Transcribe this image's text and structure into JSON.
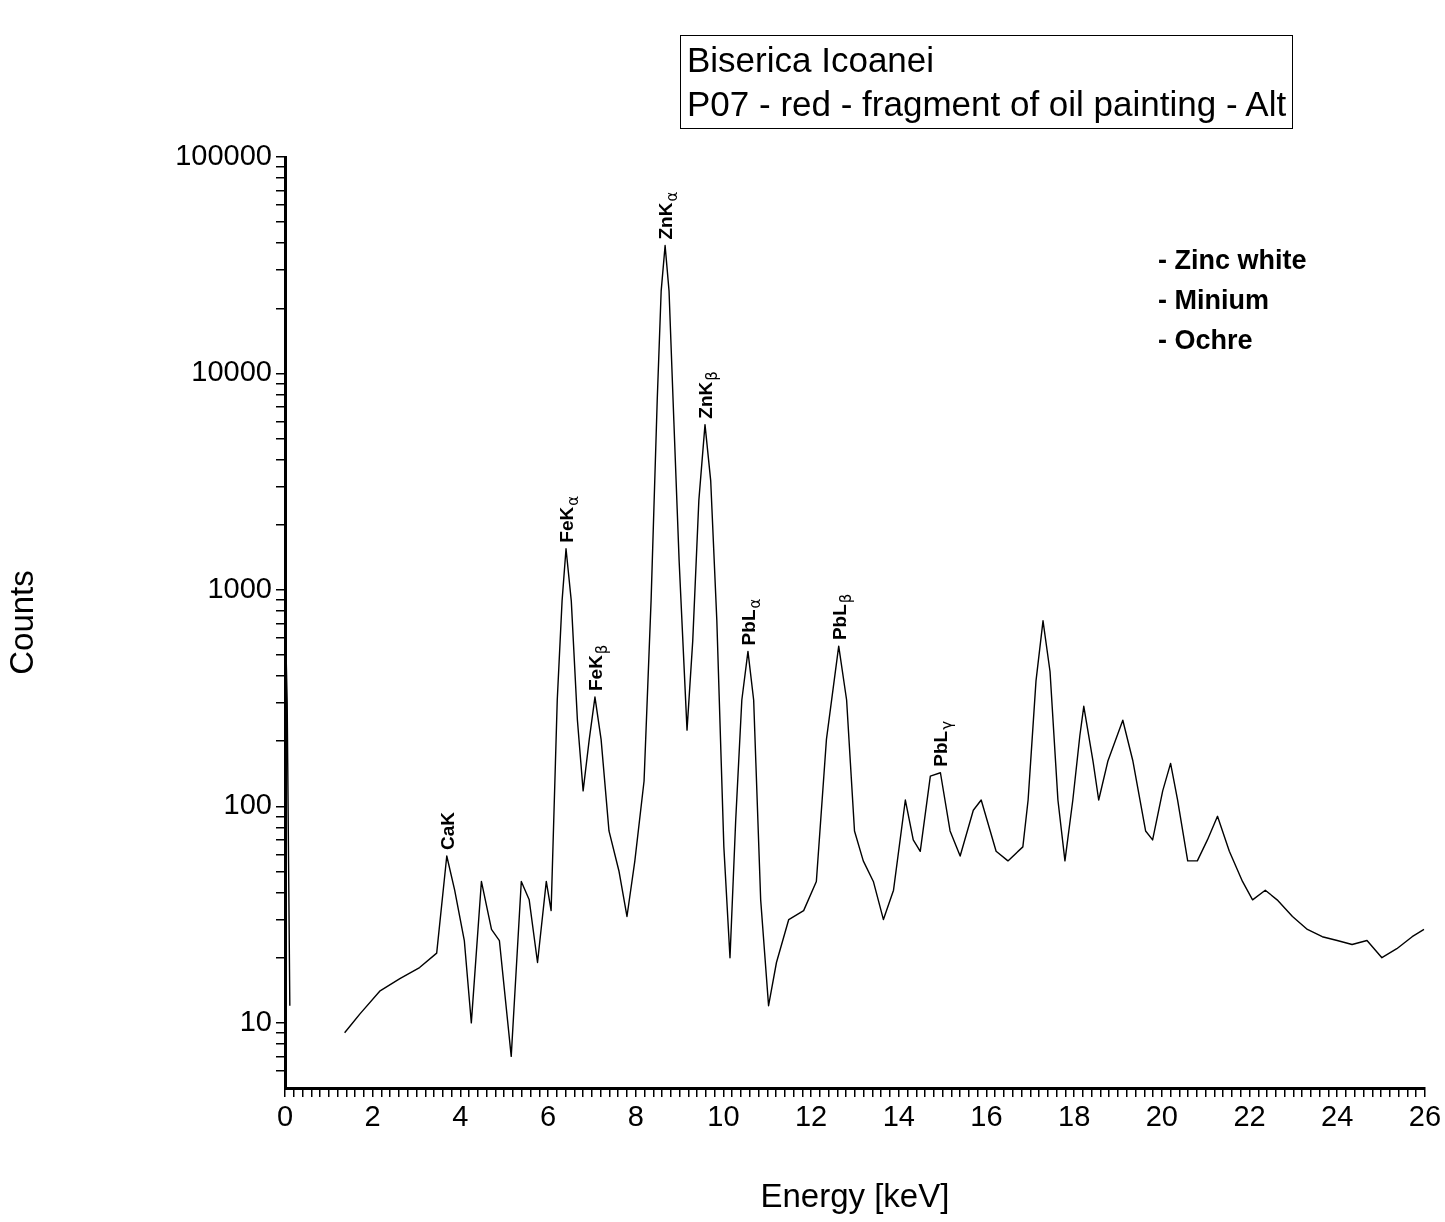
{
  "chart_data": {
    "type": "line",
    "title": "Biserica Icoanei",
    "subtitle": "P07 - red - fragment of oil painting - Alt",
    "xlabel": "Energy [keV]",
    "ylabel": "Counts",
    "log": "y",
    "marker": "none",
    "line_style": "solid",
    "legend": false,
    "xlim": [
      0,
      26
    ],
    "ylim": [
      5,
      100000
    ],
    "xticks": [
      0,
      {
        "value": 0.2,
        "label": null
      },
      {
        "value": 0.4,
        "label": null
      },
      {
        "value": 0.6,
        "label": null
      },
      {
        "value": 0.8,
        "label": null
      },
      {
        "value": 1,
        "label": null
      },
      {
        "value": 1.2,
        "label": null
      },
      {
        "value": 1.4,
        "label": null
      },
      {
        "value": 1.6,
        "label": null
      },
      {
        "value": 1.8,
        "label": null
      },
      2,
      {
        "value": 2.2,
        "label": null
      },
      {
        "value": 2.4,
        "label": null
      },
      {
        "value": 2.6,
        "label": null
      },
      {
        "value": 2.8,
        "label": null
      },
      {
        "value": 3,
        "label": null
      },
      {
        "value": 3.2,
        "label": null
      },
      {
        "value": 3.4,
        "label": null
      },
      {
        "value": 3.6,
        "label": null
      },
      {
        "value": 3.8,
        "label": null
      },
      4,
      {
        "value": 4.2,
        "label": null
      },
      {
        "value": 4.4,
        "label": null
      },
      {
        "value": 4.6,
        "label": null
      },
      {
        "value": 4.8,
        "label": null
      },
      {
        "value": 5,
        "label": null
      },
      {
        "value": 5.2,
        "label": null
      },
      {
        "value": 5.4,
        "label": null
      },
      {
        "value": 5.6,
        "label": null
      },
      {
        "value": 5.8,
        "label": null
      },
      6,
      {
        "value": 6.2,
        "label": null
      },
      {
        "value": 6.4,
        "label": null
      },
      {
        "value": 6.6,
        "label": null
      },
      {
        "value": 6.8,
        "label": null
      },
      {
        "value": 7,
        "label": null
      },
      {
        "value": 7.2,
        "label": null
      },
      {
        "value": 7.4,
        "label": null
      },
      {
        "value": 7.6,
        "label": null
      },
      {
        "value": 7.8,
        "label": null
      },
      8,
      {
        "value": 8.2,
        "label": null
      },
      {
        "value": 8.4,
        "label": null
      },
      {
        "value": 8.6,
        "label": null
      },
      {
        "value": 8.8,
        "label": null
      },
      {
        "value": 9,
        "label": null
      },
      {
        "value": 9.2,
        "label": null
      },
      {
        "value": 9.4,
        "label": null
      },
      {
        "value": 9.6,
        "label": null
      },
      {
        "value": 9.8,
        "label": null
      },
      10,
      {
        "value": 10.2,
        "label": null
      },
      {
        "value": 10.4,
        "label": null
      },
      {
        "value": 10.6,
        "label": null
      },
      {
        "value": 10.8,
        "label": null
      },
      {
        "value": 11,
        "label": null
      },
      {
        "value": 11.2,
        "label": null
      },
      {
        "value": 11.4,
        "label": null
      },
      {
        "value": 11.6,
        "label": null
      },
      {
        "value": 11.8,
        "label": null
      },
      12,
      {
        "value": 12.2,
        "label": null
      },
      {
        "value": 12.4,
        "label": null
      },
      {
        "value": 12.6,
        "label": null
      },
      {
        "value": 12.8,
        "label": null
      },
      {
        "value": 13,
        "label": null
      },
      {
        "value": 13.2,
        "label": null
      },
      {
        "value": 13.4,
        "label": null
      },
      {
        "value": 13.6,
        "label": null
      },
      {
        "value": 13.8,
        "label": null
      },
      14,
      {
        "value": 14.2,
        "label": null
      },
      {
        "value": 14.4,
        "label": null
      },
      {
        "value": 14.6,
        "label": null
      },
      {
        "value": 14.8,
        "label": null
      },
      {
        "value": 15,
        "label": null
      },
      {
        "value": 15.2,
        "label": null
      },
      {
        "value": 15.4,
        "label": null
      },
      {
        "value": 15.6,
        "label": null
      },
      {
        "value": 15.8,
        "label": null
      },
      16,
      {
        "value": 16.2,
        "label": null
      },
      {
        "value": 16.4,
        "label": null
      },
      {
        "value": 16.6,
        "label": null
      },
      {
        "value": 16.8,
        "label": null
      },
      {
        "value": 17,
        "label": null
      },
      {
        "value": 17.2,
        "label": null
      },
      {
        "value": 17.4,
        "label": null
      },
      {
        "value": 17.6,
        "label": null
      },
      {
        "value": 17.8,
        "label": null
      },
      18,
      {
        "value": 18.2,
        "label": null
      },
      {
        "value": 18.4,
        "label": null
      },
      {
        "value": 18.6,
        "label": null
      },
      {
        "value": 18.8,
        "label": null
      },
      {
        "value": 19,
        "label": null
      },
      {
        "value": 19.2,
        "label": null
      },
      {
        "value": 19.4,
        "label": null
      },
      {
        "value": 19.6,
        "label": null
      },
      {
        "value": 19.8,
        "label": null
      },
      20,
      {
        "value": 20.2,
        "label": null
      },
      {
        "value": 20.4,
        "label": null
      },
      {
        "value": 20.6,
        "label": null
      },
      {
        "value": 20.8,
        "label": null
      },
      {
        "value": 21,
        "label": null
      },
      {
        "value": 21.2,
        "label": null
      },
      {
        "value": 21.4,
        "label": null
      },
      {
        "value": 21.6,
        "label": null
      },
      {
        "value": 21.8,
        "label": null
      },
      22,
      {
        "value": 22.2,
        "label": null
      },
      {
        "value": 22.4,
        "label": null
      },
      {
        "value": 22.6,
        "label": null
      },
      {
        "value": 22.8,
        "label": null
      },
      {
        "value": 23,
        "label": null
      },
      {
        "value": 23.2,
        "label": null
      },
      {
        "value": 23.4,
        "label": null
      },
      {
        "value": 23.6,
        "label": null
      },
      {
        "value": 23.8,
        "label": null
      },
      24,
      {
        "value": 24.2,
        "label": null
      },
      {
        "value": 24.4,
        "label": null
      },
      {
        "value": 24.6,
        "label": null
      },
      {
        "value": 24.8,
        "label": null
      },
      {
        "value": 25,
        "label": null
      },
      {
        "value": 25.2,
        "label": null
      },
      {
        "value": 25.4,
        "label": null
      },
      {
        "value": 25.6,
        "label": null
      },
      {
        "value": 25.8,
        "label": null
      },
      26
    ],
    "yticks": [
      {
        "value": 6,
        "label": null
      },
      {
        "value": 7,
        "label": null
      },
      {
        "value": 8,
        "label": null
      },
      {
        "value": 9,
        "label": null
      },
      10,
      {
        "value": 20,
        "label": null
      },
      {
        "value": 30,
        "label": null
      },
      {
        "value": 40,
        "label": null
      },
      {
        "value": 50,
        "label": null
      },
      {
        "value": 60,
        "label": null
      },
      {
        "value": 70,
        "label": null
      },
      {
        "value": 80,
        "label": null
      },
      {
        "value": 90,
        "label": null
      },
      100,
      {
        "value": 200,
        "label": null
      },
      {
        "value": 300,
        "label": null
      },
      {
        "value": 400,
        "label": null
      },
      {
        "value": 500,
        "label": null
      },
      {
        "value": 600,
        "label": null
      },
      {
        "value": 700,
        "label": null
      },
      {
        "value": 800,
        "label": null
      },
      {
        "value": 900,
        "label": null
      },
      1000,
      {
        "value": 2000,
        "label": null
      },
      {
        "value": 3000,
        "label": null
      },
      {
        "value": 4000,
        "label": null
      },
      {
        "value": 5000,
        "label": null
      },
      {
        "value": 6000,
        "label": null
      },
      {
        "value": 7000,
        "label": null
      },
      {
        "value": 8000,
        "label": null
      },
      {
        "value": 9000,
        "label": null
      },
      10000,
      {
        "value": 20000,
        "label": null
      },
      {
        "value": 30000,
        "label": null
      },
      {
        "value": 40000,
        "label": null
      },
      {
        "value": 50000,
        "label": null
      },
      {
        "value": 60000,
        "label": null
      },
      {
        "value": 70000,
        "label": null
      },
      {
        "value": 80000,
        "label": null
      },
      {
        "value": 90000,
        "label": null
      },
      100000
    ],
    "series": [
      {
        "color": "#000000",
        "x": [
          0,
          0.05,
          0.11,
          0.23,
          0.27,
          0.5,
          0.8,
          1.0,
          1.25,
          1.36,
          1.71,
          2.16,
          2.62,
          3.07,
          3.46,
          3.69,
          3.87,
          4.09,
          4.25,
          4.48,
          4.71,
          4.89,
          5.16,
          5.39,
          5.57,
          5.76,
          5.96,
          6.07,
          6.21,
          6.32,
          6.41,
          6.53,
          6.67,
          6.8,
          6.94,
          7.07,
          7.21,
          7.39,
          7.62,
          7.8,
          7.98,
          8.19,
          8.35,
          8.49,
          8.58,
          8.67,
          8.76,
          8.87,
          8.99,
          9.17,
          9.3,
          9.44,
          9.58,
          9.71,
          9.85,
          10.01,
          10.15,
          10.28,
          10.42,
          10.56,
          10.69,
          10.85,
          11.03,
          11.21,
          11.49,
          11.83,
          12.12,
          12.35,
          12.63,
          12.81,
          12.99,
          13.19,
          13.42,
          13.65,
          13.88,
          14.15,
          14.33,
          14.49,
          14.72,
          14.95,
          15.17,
          15.4,
          15.7,
          15.88,
          16.22,
          16.49,
          16.83,
          16.95,
          17.13,
          17.29,
          17.45,
          17.63,
          17.79,
          17.97,
          18.13,
          18.22,
          18.43,
          18.56,
          18.77,
          19.11,
          19.34,
          19.63,
          19.79,
          20.02,
          20.2,
          20.36,
          20.59,
          20.81,
          21.04,
          21.27,
          21.54,
          21.84,
          22.07,
          22.36,
          22.63,
          22.98,
          23.32,
          23.66,
          24,
          24.34,
          24.68,
          25.02,
          25.36,
          25.71,
          25.98
        ],
        "values": [
          850,
          300,
          12,
          null,
          null,
          null,
          null,
          null,
          null,
          9,
          11,
          14,
          16,
          18,
          21,
          59,
          41,
          24,
          10,
          45,
          27,
          24,
          7,
          45,
          37,
          19,
          45,
          33,
          310,
          890,
          1550,
          890,
          250,
          118,
          204,
          320,
          204,
          77,
          50,
          31,
          56,
          131,
          890,
          7500,
          24000,
          39000,
          24000,
          6000,
          1360,
          225,
          580,
          2600,
          5800,
          3200,
          720,
          65,
          20,
          86,
          310,
          520,
          310,
          37,
          12,
          19,
          30,
          33,
          45,
          204,
          550,
          310,
          77,
          56,
          45,
          30,
          41,
          107,
          70,
          62,
          138,
          143,
          77,
          59,
          96,
          107,
          62,
          56,
          65,
          107,
          380,
          720,
          420,
          107,
          56,
          107,
          212,
          290,
          162,
          107,
          162,
          250,
          162,
          77,
          70,
          118,
          158,
          107,
          56,
          56,
          70,
          90,
          62,
          45,
          37,
          41,
          37,
          31,
          27,
          25,
          24,
          23,
          24,
          20,
          22,
          25,
          27
        ]
      }
    ],
    "annotations": [
      {
        "text": "CaK",
        "x": 3.69,
        "y": 59
      },
      {
        "text": "FeK$_{α}$",
        "x": 6.41,
        "y": 1550
      },
      {
        "text": "FeK$_{β}$",
        "x": 7.07,
        "y": 320
      },
      {
        "text": "ZnK$_{α}$",
        "x": 8.67,
        "y": 39000
      },
      {
        "text": "ZnK$_{β}$",
        "x": 9.58,
        "y": 5800
      },
      {
        "text": "PbL$_{α}$",
        "x": 10.56,
        "y": 520
      },
      {
        "text": "PbL$_{β}$",
        "x": 12.63,
        "y": 550
      },
      {
        "text": "PbL$_{γ}$",
        "x": 14.95,
        "y": 143
      },
      "- Zinc white",
      "- Minium",
      "- Ochre"
    ]
  }
}
